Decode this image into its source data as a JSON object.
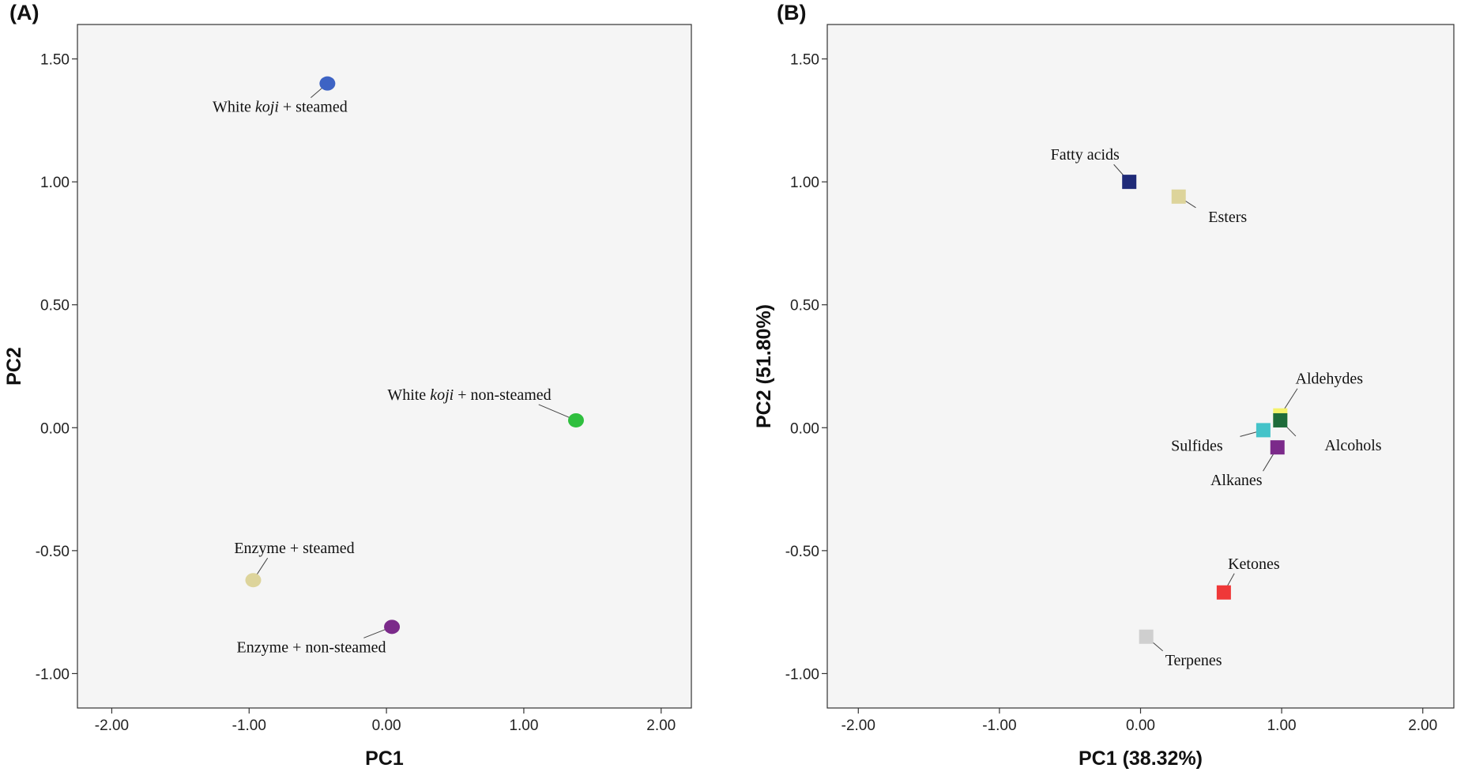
{
  "chart_data": [
    {
      "type": "scatter",
      "panel": "(A)",
      "title": "",
      "xlabel": "PC1",
      "ylabel": "PC2",
      "xlim": [
        -2.25,
        2.22
      ],
      "ylim": [
        -1.14,
        1.64
      ],
      "xticks": [
        -2,
        -1,
        0,
        1,
        2
      ],
      "xtick_labels": [
        "-2.00",
        "-1.00",
        "0.00",
        "1.00",
        "2.00"
      ],
      "yticks": [
        -1,
        -0.5,
        0,
        0.5,
        1,
        1.5
      ],
      "ytick_labels": [
        "-1.00",
        "-0.50",
        "0.00",
        "0.50",
        "1.00",
        "1.50"
      ],
      "marker": "circle",
      "points": [
        {
          "pre": "White ",
          "it": "koji",
          "post": " + steamed",
          "x": -0.43,
          "y": 1.4,
          "color": "#3d63c4",
          "anchor": "middle",
          "dx": -60,
          "dy": 36
        },
        {
          "pre": "White ",
          "it": "koji",
          "post": " + non-steamed",
          "x": 1.38,
          "y": 0.03,
          "color": "#2fbf3e",
          "anchor": "middle",
          "dx": -135,
          "dy": -26
        },
        {
          "pre": "Enzyme + steamed",
          "it": "",
          "post": "",
          "x": -0.97,
          "y": -0.62,
          "color": "#ddd49b",
          "anchor": "middle",
          "dx": 52,
          "dy": -34
        },
        {
          "pre": "Enzyme + non-steamed",
          "it": "",
          "post": "",
          "x": 0.04,
          "y": -0.81,
          "color": "#7b2a8a",
          "anchor": "middle",
          "dx": -102,
          "dy": 32
        }
      ]
    },
    {
      "type": "scatter",
      "panel": "(B)",
      "title": "",
      "xlabel": "PC1 (38.32%)",
      "ylabel": "PC2 (51.80%)",
      "xlim": [
        -2.22,
        2.22
      ],
      "ylim": [
        -1.14,
        1.64
      ],
      "xticks": [
        -2,
        -1,
        0,
        1,
        2
      ],
      "xtick_labels": [
        "-2.00",
        "-1.00",
        "0.00",
        "1.00",
        "2.00"
      ],
      "yticks": [
        -1,
        -0.5,
        0,
        0.5,
        1,
        1.5
      ],
      "ytick_labels": [
        "-1.00",
        "-0.50",
        "0.00",
        "0.50",
        "1.00",
        "1.50"
      ],
      "marker": "square",
      "points": [
        {
          "pre": "Fatty acids",
          "it": "",
          "post": "",
          "x": -0.08,
          "y": 1.0,
          "color": "#1f2a78",
          "anchor": "middle",
          "dx": -56,
          "dy": -28
        },
        {
          "pre": "Esters",
          "it": "",
          "post": "",
          "x": 0.27,
          "y": 0.94,
          "color": "#ddd49b",
          "anchor": "middle",
          "dx": 62,
          "dy": 32
        },
        {
          "pre": "Aldehydes",
          "it": "",
          "post": "",
          "x": 0.99,
          "y": 0.05,
          "color": "#f4f26a",
          "anchor": "middle",
          "dx": 62,
          "dy": -40
        },
        {
          "pre": "Alcohols",
          "it": "",
          "post": "",
          "x": 0.99,
          "y": 0.03,
          "color": "#1e6b3a",
          "anchor": "start",
          "dx": 56,
          "dy": 38
        },
        {
          "pre": "Sulfides",
          "it": "",
          "post": "",
          "x": 0.87,
          "y": -0.01,
          "color": "#44c3c9",
          "anchor": "middle",
          "dx": -84,
          "dy": 26
        },
        {
          "pre": "Alkanes",
          "it": "",
          "post": "",
          "x": 0.97,
          "y": -0.08,
          "color": "#7b2a8a",
          "anchor": "middle",
          "dx": -52,
          "dy": 48
        },
        {
          "pre": "Ketones",
          "it": "",
          "post": "",
          "x": 0.59,
          "y": -0.67,
          "color": "#ef3838",
          "anchor": "middle",
          "dx": 38,
          "dy": -30
        },
        {
          "pre": "Terpenes",
          "it": "",
          "post": "",
          "x": 0.04,
          "y": -0.85,
          "color": "#cfcfcf",
          "anchor": "middle",
          "dx": 60,
          "dy": 36
        }
      ]
    }
  ]
}
